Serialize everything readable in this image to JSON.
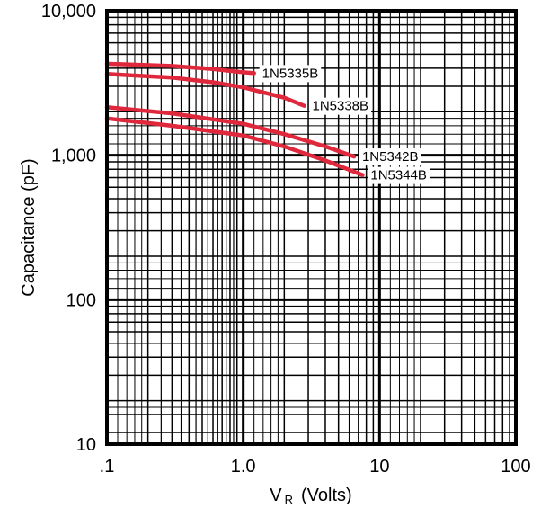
{
  "chart_data": {
    "type": "line",
    "title": "",
    "xlabel": {
      "main": "V",
      "sub": "R",
      "unit": "(Volts)"
    },
    "ylabel": "Capacitance (pF)",
    "xscale": "log",
    "yscale": "log",
    "xlim": [
      0.1,
      100
    ],
    "ylim": [
      10,
      10000
    ],
    "grid": true,
    "x_ticks": [
      {
        "value": 0.1,
        "label": ".1"
      },
      {
        "value": 1,
        "label": "1.0"
      },
      {
        "value": 10,
        "label": "10"
      },
      {
        "value": 100,
        "label": "100"
      }
    ],
    "y_ticks": [
      {
        "value": 10,
        "label": "10"
      },
      {
        "value": 100,
        "label": "100"
      },
      {
        "value": 1000,
        "label": "1,000"
      },
      {
        "value": 10000,
        "label": "10,000"
      }
    ],
    "series_color": "#e0283c",
    "series": [
      {
        "name": "1N5335B",
        "x": [
          0.1,
          0.3,
          0.6,
          1.0,
          1.2
        ],
        "y": [
          4300,
          4150,
          3950,
          3750,
          3700
        ]
      },
      {
        "name": "1N5338B",
        "x": [
          0.1,
          0.3,
          0.6,
          1.0,
          2.0,
          2.8
        ],
        "y": [
          3650,
          3450,
          3200,
          2950,
          2500,
          2200
        ]
      },
      {
        "name": "1N5342B",
        "x": [
          0.1,
          0.3,
          1.0,
          2.0,
          4.0,
          6.5
        ],
        "y": [
          2150,
          1950,
          1650,
          1400,
          1150,
          980
        ]
      },
      {
        "name": "1N5344B",
        "x": [
          0.1,
          0.3,
          1.0,
          2.0,
          4.0,
          7.5
        ],
        "y": [
          1800,
          1600,
          1370,
          1150,
          920,
          730
        ]
      }
    ]
  }
}
